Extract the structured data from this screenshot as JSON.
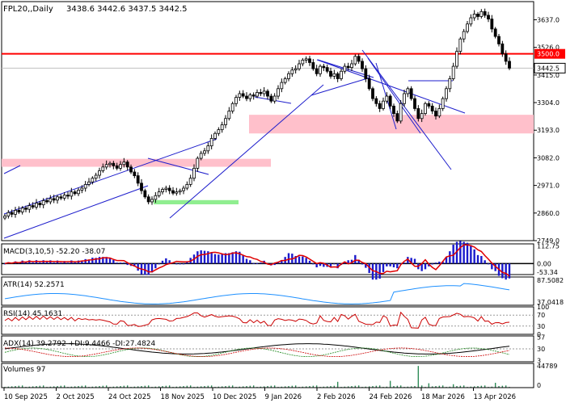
{
  "chart_data": {
    "type": "candlestick",
    "header": {
      "symbol": "FPL20,,Daily",
      "ohlc": "3438.6 3442.6 3437.5 3442.5"
    },
    "price": {
      "ylim": [
        2749,
        3710
      ],
      "ticks": [
        "3637.0",
        "3526.0",
        "3415.0",
        "3304.0",
        "3193.0",
        "3082.0",
        "2971.0",
        "2860.0",
        "2749.0"
      ],
      "resistance": {
        "value": 3500.0,
        "label": "3500.0",
        "color": "#ff0000"
      },
      "last": {
        "value": 3442.5,
        "label": "3442.5"
      },
      "zones": [
        {
          "from": 3180,
          "to": 3255,
          "color": "#ffc0cb"
        },
        {
          "from": 3046,
          "to": 3078,
          "color": "#ffc0cb"
        },
        {
          "from": 2895,
          "to": 2912,
          "color": "#90ee90"
        }
      ],
      "close": [
        2848,
        2862,
        2855,
        2871,
        2864,
        2880,
        2875,
        2890,
        2884,
        2900,
        2893,
        2910,
        2905,
        2918,
        2912,
        2925,
        2920,
        2932,
        2928,
        2945,
        2938,
        2952,
        2960,
        2975,
        2985,
        3000,
        3012,
        3030,
        3045,
        3055,
        3060,
        3050,
        3040,
        3055,
        3065,
        3045,
        3025,
        3010,
        2980,
        2950,
        2925,
        2905,
        2915,
        2930,
        2945,
        2955,
        2960,
        2950,
        2940,
        2945,
        2950,
        2960,
        2975,
        3000,
        3040,
        3080,
        3100,
        3110,
        3130,
        3160,
        3180,
        3195,
        3215,
        3240,
        3270,
        3300,
        3325,
        3340,
        3330,
        3320,
        3335,
        3330,
        3345,
        3340,
        3350,
        3330,
        3310,
        3330,
        3360,
        3385,
        3400,
        3420,
        3435,
        3440,
        3460,
        3475,
        3480,
        3465,
        3440,
        3420,
        3450,
        3445,
        3430,
        3410,
        3420,
        3400,
        3430,
        3450,
        3445,
        3460,
        3490,
        3470,
        3440,
        3400,
        3360,
        3320,
        3300,
        3280,
        3310,
        3330,
        3290,
        3260,
        3230,
        3300,
        3340,
        3360,
        3320,
        3280,
        3240,
        3260,
        3300,
        3290,
        3270,
        3250,
        3280,
        3320,
        3360,
        3400,
        3450,
        3510,
        3560,
        3590,
        3620,
        3645,
        3660,
        3650,
        3670,
        3655,
        3640,
        3600,
        3570,
        3540,
        3500,
        3470,
        3442.5
      ],
      "channels": [
        [
          [
            5,
            295
          ],
          [
            183,
            230
          ]
        ],
        [
          [
            5,
            265
          ],
          [
            268,
            172
          ]
        ],
        [
          [
            183,
            196
          ],
          [
            258,
            216
          ]
        ],
        [
          [
            210,
            270
          ],
          [
            400,
            105
          ]
        ],
        [
          [
            315,
            120
          ],
          [
            360,
            128
          ]
        ],
        [
          [
            385,
            118
          ],
          [
            458,
            96
          ]
        ],
        [
          [
            392,
            74
          ],
          [
            575,
            140
          ]
        ],
        [
          [
            393,
            74
          ],
          [
            462,
            96
          ]
        ],
        [
          [
            448,
            62
          ],
          [
            558,
            210
          ]
        ],
        [
          [
            455,
            72
          ],
          [
            520,
            165
          ]
        ],
        [
          [
            465,
            78
          ],
          [
            490,
            160
          ]
        ],
        [
          [
            505,
            100
          ],
          [
            560,
            100
          ]
        ],
        [
          [
            5,
            215
          ],
          [
            25,
            205
          ]
        ]
      ]
    },
    "macd": {
      "label": "MACD(3,10,5) -52.20 -38.07",
      "ticks": [
        "112.75",
        "0.00",
        "-53.34"
      ]
    },
    "atr": {
      "label": "ATR(14) 52.2571",
      "ticks": [
        "87.5082",
        "37.0418"
      ]
    },
    "rsi": {
      "label": "RSI(14) 45.1631",
      "ticks": [
        "100",
        "70",
        "30",
        "0"
      ]
    },
    "adx": {
      "label": "ADX(14) 39.2792 +DI:9.4466 -DI:27.4824",
      "ticks": [
        "57",
        "30",
        "3"
      ]
    },
    "volume": {
      "label": "Volumes 97",
      "ticks": [
        "44789",
        "0"
      ]
    },
    "x_labels": [
      "10 Sep 2025",
      "2 Oct 2025",
      "24 Oct 2025",
      "18 Nov 2025",
      "10 Dec 2025",
      "9 Jan 2026",
      "2 Feb 2026",
      "24 Feb 2026",
      "18 Mar 2026",
      "13 Apr 2026"
    ]
  }
}
